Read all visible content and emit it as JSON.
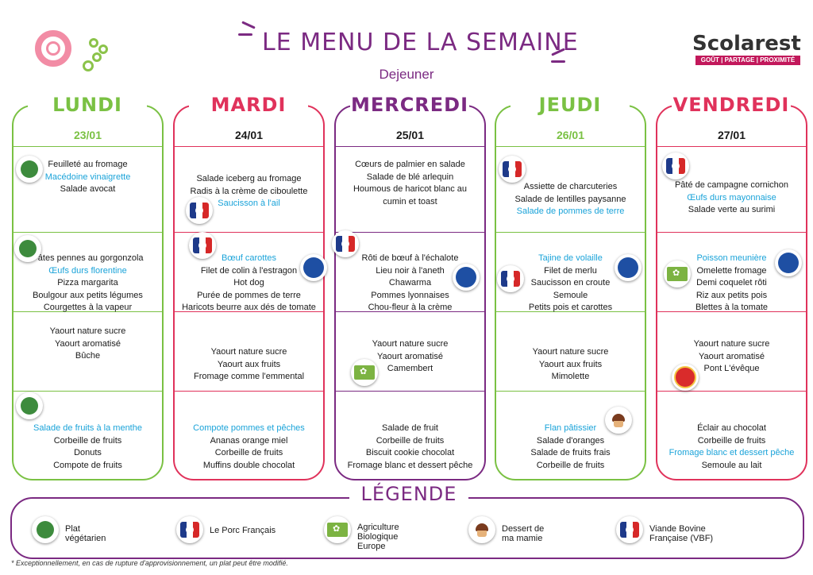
{
  "header": {
    "title": "LE MENU DE LA SEMAINE",
    "subtitle": "Dejeuner"
  },
  "logo": {
    "word": "Scolarest",
    "tagline": "GOÛT | PARTAGE | PROXIMITÉ"
  },
  "colors": {
    "green": "#7ac143",
    "red": "#e0325b",
    "purple": "#7b2a82",
    "highlight": "#1aa3d9"
  },
  "days": [
    {
      "name": "LUNDI",
      "date": "23/01",
      "starters": [
        "Feuilleté au fromage",
        "Macédoine vinaigrette",
        "Salade avocat"
      ],
      "mains": [
        "Pâtes pennes au gorgonzola",
        "Œufs durs florentine",
        "Pizza margarita",
        "Boulgour aux petits légumes",
        "Courgettes à la vapeur"
      ],
      "dairy": [
        "Yaourt nature sucre",
        "Yaourt aromatisé",
        "Bûche"
      ],
      "desserts": [
        "Salade de fruits à la menthe",
        "Corbeille de fruits",
        "Donuts",
        "Compote de fruits"
      ]
    },
    {
      "name": "MARDI",
      "date": "24/01",
      "starters": [
        "Salade iceberg au fromage",
        "Radis à la crème de ciboulette",
        "Saucisson à l'ail"
      ],
      "mains": [
        "Bœuf carottes",
        "Filet de colin à l'estragon",
        "Hot dog",
        "Purée de pommes de terre",
        "Haricots beurre aux dés de tomate"
      ],
      "dairy": [
        "Yaourt nature sucre",
        "Yaourt aux fruits",
        "Fromage comme l'emmental"
      ],
      "desserts": [
        "Compote pommes et pêches",
        "Ananas orange miel",
        "Corbeille de fruits",
        "Muffins double chocolat"
      ]
    },
    {
      "name": "MERCREDI",
      "date": "25/01",
      "starters": [
        "Cœurs de palmier en salade",
        "Salade de blé arlequin",
        "Houmous de haricot blanc au",
        "cumin et toast"
      ],
      "mains": [
        "Rôti de bœuf à l'échalote",
        "Lieu noir à l'aneth",
        "Chawarma",
        "Pommes lyonnaises",
        "Chou-fleur à la crème"
      ],
      "dairy": [
        "Yaourt nature sucre",
        "Yaourt aromatisé",
        "Camembert"
      ],
      "desserts": [
        "Salade de fruit",
        "Corbeille de fruits",
        "Biscuit cookie chocolat",
        "Fromage blanc et dessert pêche"
      ]
    },
    {
      "name": "JEUDI",
      "date": "26/01",
      "starters": [
        "Assiette de charcuteries",
        "Salade de lentilles paysanne",
        "Salade de pommes de terre"
      ],
      "mains": [
        "Tajine de volaille",
        "Filet de merlu",
        "Saucisson en croute",
        "Semoule",
        "Petits pois et carottes"
      ],
      "dairy": [
        "Yaourt nature sucre",
        "Yaourt aux fruits",
        "Mimolette"
      ],
      "desserts": [
        "Flan pâtissier",
        "Salade d'oranges",
        "Salade de fruits frais",
        "Corbeille de fruits"
      ]
    },
    {
      "name": "VENDREDI",
      "date": "27/01",
      "starters": [
        "Pâté de campagne cornichon",
        "Œufs durs mayonnaise",
        "Salade verte au surimi"
      ],
      "mains": [
        "Poisson meunière",
        "Omelette fromage",
        "Demi coquelet rôti",
        "Riz aux petits pois",
        "Blettes à la tomate"
      ],
      "dairy": [
        "Yaourt nature sucre",
        "Yaourt aromatisé",
        "Pont L'évêque"
      ],
      "desserts": [
        "Éclair au chocolat",
        "Corbeille de fruits",
        "Fromage blanc et dessert pêche",
        "Semoule au lait"
      ]
    }
  ],
  "legend": {
    "title": "LÉGENDE",
    "items": [
      {
        "icon": "vegetarian-icon",
        "line1": "Plat",
        "line2": "végétarien",
        "line3": ""
      },
      {
        "icon": "porc-francais-icon",
        "line1": "Le Porc Français",
        "line2": "",
        "line3": ""
      },
      {
        "icon": "bio-eu-icon",
        "line1": "Agriculture",
        "line2": "Biologique",
        "line3": "Europe"
      },
      {
        "icon": "cupcake-icon",
        "line1": "Dessert de",
        "line2": "ma mamie",
        "line3": ""
      },
      {
        "icon": "vbf-icon",
        "line1": "Viande Bovine",
        "line2": "Française (VBF)",
        "line3": ""
      }
    ]
  },
  "footnote": "* Exceptionnellement, en cas de rupture d'approvisionnement, un plat peut être modifié."
}
